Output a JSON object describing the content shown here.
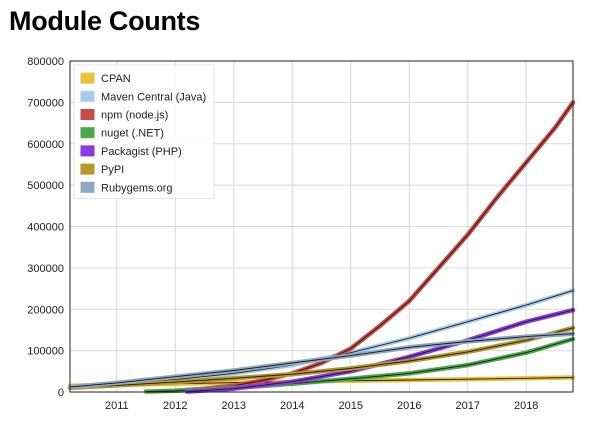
{
  "page": {
    "title": "Module Counts"
  },
  "chart_data": {
    "type": "line",
    "title": "Module Counts",
    "xlabel": "",
    "ylabel": "",
    "xlim": [
      2010.2,
      2018.8
    ],
    "ylim": [
      0,
      800000
    ],
    "x_ticks": [
      "2011",
      "2012",
      "2013",
      "2014",
      "2015",
      "2016",
      "2017",
      "2018"
    ],
    "y_ticks": [
      "0",
      "100000",
      "200000",
      "300000",
      "400000",
      "500000",
      "600000",
      "700000",
      "800000"
    ],
    "grid": true,
    "legend_position": "top-left",
    "series": [
      {
        "name": "CPAN",
        "color": "#e8c23c",
        "x": [
          2010.2,
          2011,
          2012,
          2013,
          2014,
          2015,
          2016,
          2017,
          2018,
          2018.8
        ],
        "y": [
          15000,
          17500,
          20000,
          22500,
          25000,
          27000,
          29000,
          31000,
          33000,
          35000
        ]
      },
      {
        "name": "Maven Central (Java)",
        "color": "#a8ccec",
        "x": [
          2010.2,
          2011,
          2012,
          2013,
          2014,
          2015,
          2016,
          2017,
          2018,
          2018.8
        ],
        "y": [
          10000,
          18000,
          30000,
          45000,
          65000,
          95000,
          130000,
          170000,
          210000,
          245000
        ]
      },
      {
        "name": "npm (node.js)",
        "color": "#c94a44",
        "x": [
          2012,
          2012.5,
          2013,
          2013.5,
          2014,
          2014.5,
          2015,
          2015.5,
          2016,
          2016.5,
          2017,
          2017.5,
          2018,
          2018.5,
          2018.8
        ],
        "y": [
          3000,
          8000,
          15000,
          28000,
          45000,
          70000,
          105000,
          160000,
          220000,
          300000,
          380000,
          470000,
          555000,
          640000,
          700000
        ]
      },
      {
        "name": "nuget (.NET)",
        "color": "#4aa84a",
        "x": [
          2011.5,
          2012,
          2013,
          2014,
          2015,
          2016,
          2017,
          2018,
          2018.8
        ],
        "y": [
          1000,
          3000,
          10000,
          20000,
          32000,
          45000,
          65000,
          95000,
          128000
        ]
      },
      {
        "name": "Packagist (PHP)",
        "color": "#8a3be0",
        "x": [
          2012.2,
          2013,
          2014,
          2015,
          2016,
          2017,
          2018,
          2018.8
        ],
        "y": [
          1000,
          8000,
          25000,
          50000,
          85000,
          125000,
          170000,
          198000
        ]
      },
      {
        "name": "PyPI",
        "color": "#b8962c",
        "x": [
          2010.2,
          2011,
          2012,
          2013,
          2014,
          2015,
          2016,
          2017,
          2018,
          2018.8
        ],
        "y": [
          10000,
          16000,
          24000,
          33000,
          43000,
          57000,
          75000,
          97000,
          125000,
          155000
        ]
      },
      {
        "name": "Rubygems.org",
        "color": "#8fa8c2",
        "x": [
          2010.2,
          2011,
          2012,
          2013,
          2014,
          2015,
          2016,
          2017,
          2018,
          2018.8
        ],
        "y": [
          12000,
          22000,
          37000,
          52000,
          70000,
          88000,
          108000,
          122000,
          134000,
          141000
        ]
      }
    ]
  }
}
